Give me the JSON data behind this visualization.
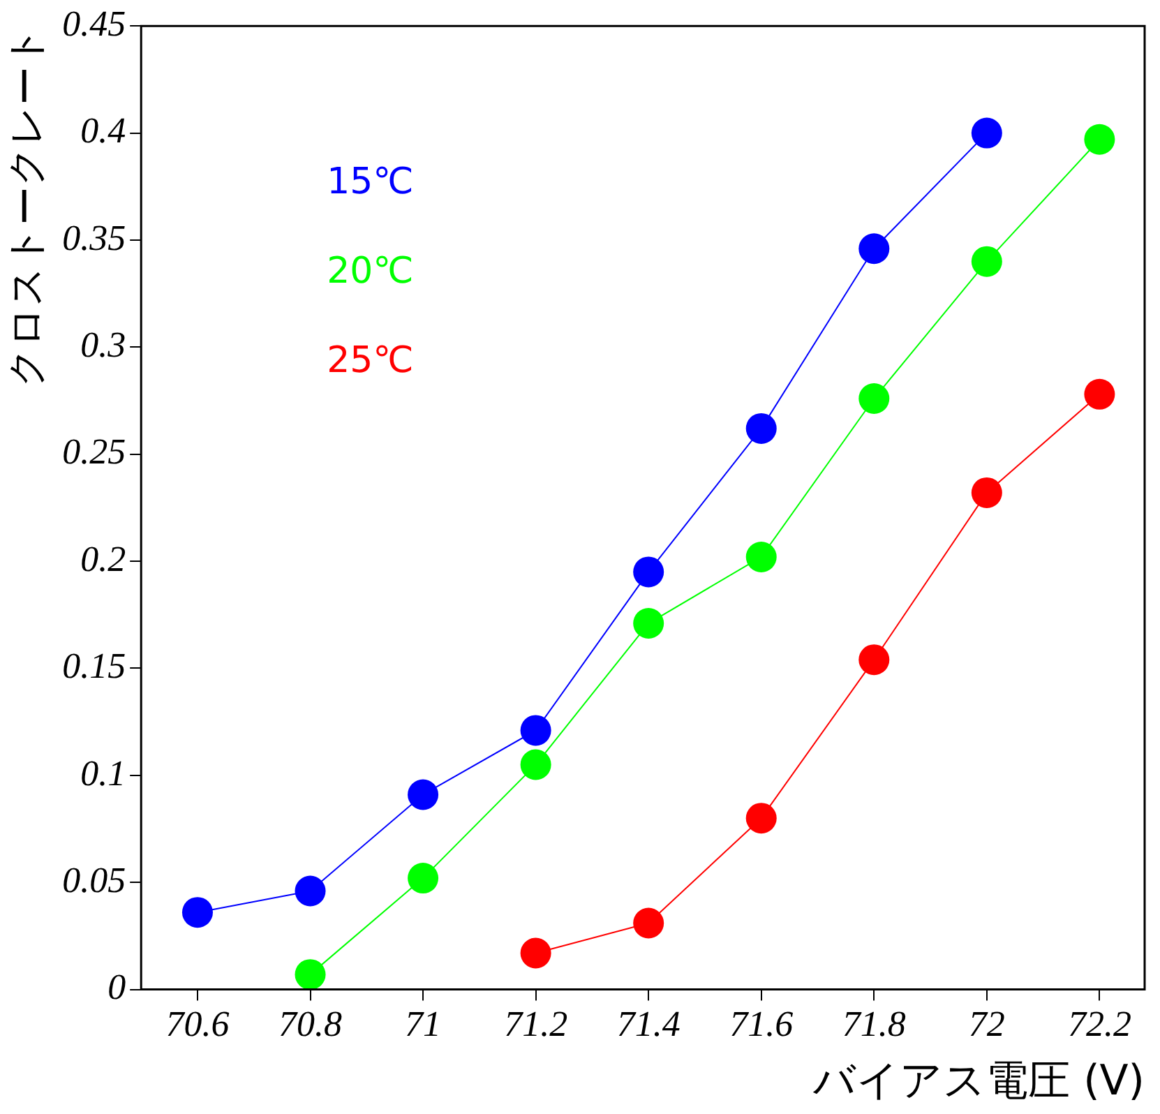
{
  "chart_data": {
    "type": "line",
    "xlabel": "バイアス電圧 (V)",
    "ylabel": "クロストークレート",
    "xlim": [
      70.5,
      72.28
    ],
    "xticks": [
      70.6,
      70.8,
      71,
      71.2,
      71.4,
      71.6,
      71.8,
      72,
      72.2
    ],
    "ylim": [
      0,
      0.45
    ],
    "yticks": [
      0,
      0.05,
      0.1,
      0.15,
      0.2,
      0.25,
      0.3,
      0.35,
      0.4,
      0.45
    ],
    "grid": false,
    "legend": "top left",
    "marker": "circle",
    "line_style": "solid",
    "series": [
      {
        "name": "15℃",
        "color": "#0000ff",
        "x": [
          70.6,
          70.8,
          71,
          71.2,
          71.4,
          71.6,
          71.8,
          72
        ],
        "values": [
          0.036,
          0.046,
          0.091,
          0.121,
          0.195,
          0.262,
          0.346,
          0.4
        ]
      },
      {
        "name": "20℃",
        "color": "#00ff00",
        "x": [
          70.8,
          71,
          71.2,
          71.4,
          71.6,
          71.8,
          72,
          72.2
        ],
        "values": [
          0.007,
          0.052,
          0.105,
          0.171,
          0.202,
          0.276,
          0.34,
          0.397
        ]
      },
      {
        "name": "25℃",
        "color": "#ff0000",
        "x": [
          71.2,
          71.4,
          71.6,
          71.8,
          72,
          72.2
        ],
        "values": [
          0.017,
          0.031,
          0.08,
          0.154,
          0.232,
          0.278
        ]
      }
    ]
  }
}
